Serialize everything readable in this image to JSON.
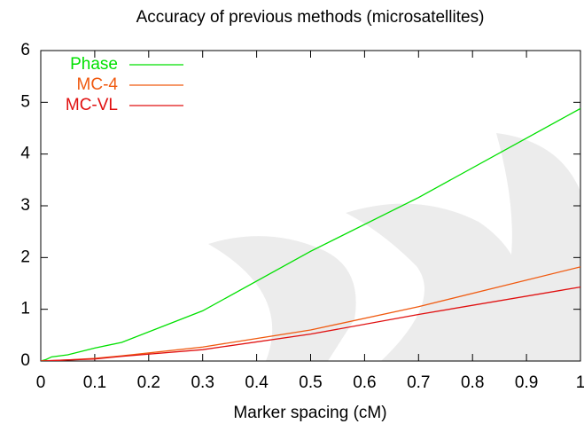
{
  "chart_data": {
    "type": "line",
    "title": "Accuracy of previous methods (microsatellites)",
    "x_label": "Marker spacing (cM)",
    "xlim": [
      0,
      1
    ],
    "xticks": [
      0,
      0.1,
      0.2,
      0.3,
      0.4,
      0.5,
      0.6,
      0.7,
      0.8,
      0.9,
      1
    ],
    "ylim": [
      0,
      6
    ],
    "yticks": [
      0,
      1,
      2,
      3,
      4,
      5,
      6
    ],
    "legend": "upper left",
    "series": [
      {
        "name": "Phase",
        "color": "#00e000",
        "x": [
          0,
          0.01,
          0.02,
          0.05,
          0.1,
          0.15,
          0.3,
          0.5,
          0.7,
          1
        ],
        "values": [
          0,
          0.03,
          0.08,
          0.12,
          0.25,
          0.36,
          0.97,
          2.12,
          3.16,
          4.88
        ]
      },
      {
        "name": "MC-4",
        "color": "#f05a10",
        "x": [
          0,
          0.05,
          0.1,
          0.15,
          0.3,
          0.5,
          0.7,
          1
        ],
        "values": [
          0,
          0.02,
          0.05,
          0.1,
          0.27,
          0.6,
          1.05,
          1.82
        ]
      },
      {
        "name": "MC-VL",
        "color": "#e01010",
        "x": [
          0,
          0.05,
          0.1,
          0.15,
          0.3,
          0.5,
          0.7,
          1
        ],
        "values": [
          0,
          0.02,
          0.04,
          0.09,
          0.22,
          0.52,
          0.9,
          1.43
        ]
      }
    ]
  }
}
